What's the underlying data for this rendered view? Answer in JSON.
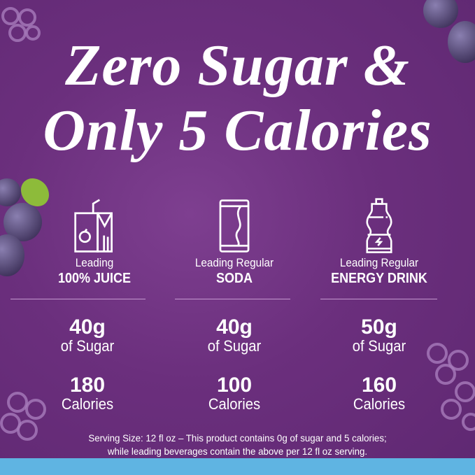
{
  "headline": {
    "line1": "Zero Sugar &",
    "line2": "Only 5 Calories"
  },
  "columns": [
    {
      "icon": "juice-box-icon",
      "lead": "Leading",
      "kind": "100% JUICE",
      "sugar": "40g",
      "sugar_unit": "of Sugar",
      "calories": "180",
      "calories_unit": "Calories"
    },
    {
      "icon": "soda-can-icon",
      "lead": "Leading Regular",
      "kind": "SODA",
      "sugar": "40g",
      "sugar_unit": "of Sugar",
      "calories": "100",
      "calories_unit": "Calories"
    },
    {
      "icon": "sports-bottle-icon",
      "lead": "Leading Regular",
      "kind": "ENERGY DRINK",
      "sugar": "50g",
      "sugar_unit": "of Sugar",
      "calories": "160",
      "calories_unit": "Calories"
    }
  ],
  "footnote": {
    "line1": "Serving Size: 12 fl oz – This product contains 0g of sugar and 5 calories;",
    "line2": "while leading beverages contain the above per 12 fl oz serving."
  },
  "colors": {
    "background": "#6b2f7d",
    "band": "#5fb4e2",
    "text": "#ffffff"
  }
}
